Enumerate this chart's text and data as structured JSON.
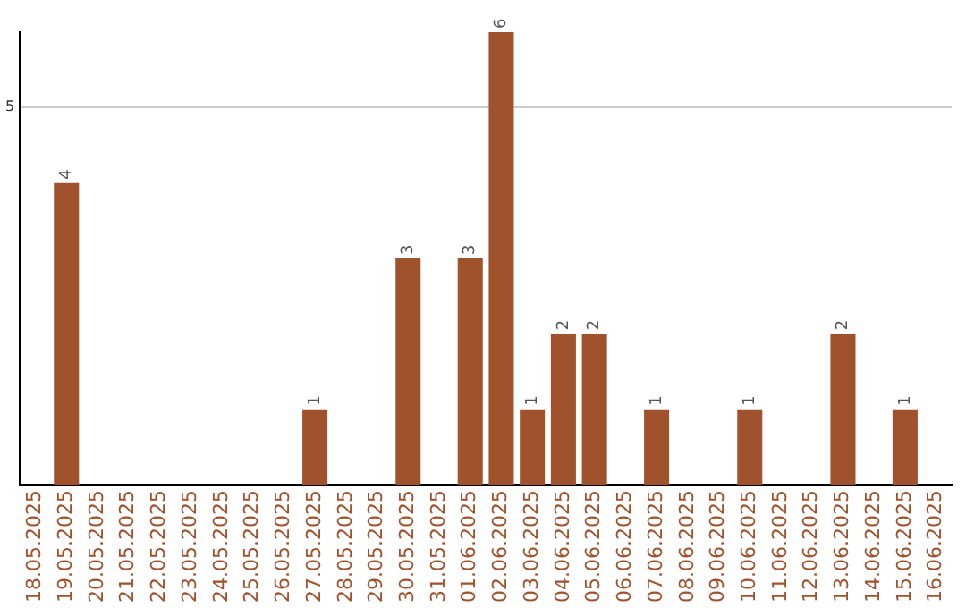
{
  "chart_data": {
    "type": "bar",
    "categories": [
      "18.05.2025",
      "19.05.2025",
      "20.05.2025",
      "21.05.2025",
      "22.05.2025",
      "23.05.2025",
      "24.05.2025",
      "25.05.2025",
      "26.05.2025",
      "27.05.2025",
      "28.05.2025",
      "29.05.2025",
      "30.05.2025",
      "31.05.2025",
      "01.06.2025",
      "02.06.2025",
      "03.06.2025",
      "04.06.2025",
      "05.06.2025",
      "06.06.2025",
      "07.06.2025",
      "08.06.2025",
      "09.06.2025",
      "10.06.2025",
      "11.06.2025",
      "12.06.2025",
      "13.06.2025",
      "14.06.2025",
      "15.06.2025",
      "16.06.2025"
    ],
    "values": [
      0,
      4,
      0,
      0,
      0,
      0,
      0,
      0,
      0,
      1,
      0,
      0,
      3,
      0,
      3,
      6,
      1,
      2,
      2,
      0,
      1,
      0,
      0,
      1,
      0,
      0,
      2,
      0,
      1,
      0
    ],
    "value_labels": [
      null,
      "4",
      null,
      null,
      null,
      null,
      null,
      null,
      null,
      "1",
      null,
      null,
      "3",
      null,
      "3",
      "6",
      "1",
      "2",
      "2",
      null,
      "1",
      null,
      null,
      "1",
      null,
      null,
      "2",
      null,
      "1",
      null
    ],
    "color": "#a0522d",
    "ylim": [
      0,
      6
    ],
    "yticks": [
      5
    ],
    "grid": "y",
    "legend": false
  }
}
